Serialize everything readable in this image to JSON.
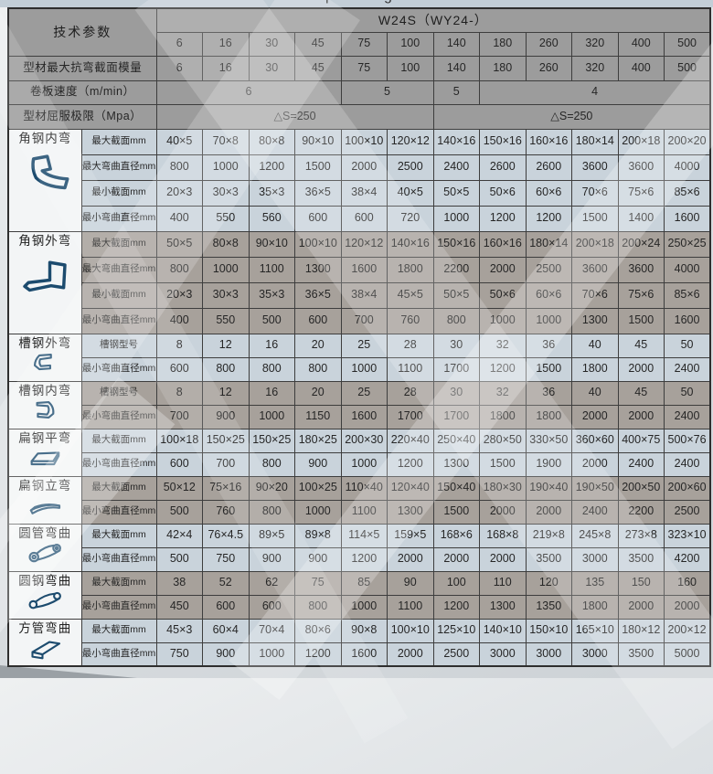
{
  "top_strip": {
    "fragments": [
      "p",
      "g"
    ]
  },
  "colors": {
    "icon_blue": "#1c4b6e",
    "header_gray": "#9c9c9c",
    "light_row": "#c9d3db",
    "dark_row": "#a7a19b",
    "border": "#3d3d3d"
  },
  "table": {
    "corner_label": "技术参数",
    "model_header": "W24S（WY24-）",
    "capacity_columns": [
      "6",
      "16",
      "30",
      "45",
      "75",
      "100",
      "140",
      "180",
      "260",
      "320",
      "400",
      "500"
    ],
    "param_rows": [
      {
        "label": "型材最大抗弯截面模量",
        "cells": [
          {
            "s": 1,
            "v": "6"
          },
          {
            "s": 1,
            "v": "16"
          },
          {
            "s": 1,
            "v": "30"
          },
          {
            "s": 1,
            "v": "45"
          },
          {
            "s": 1,
            "v": "75"
          },
          {
            "s": 1,
            "v": "100"
          },
          {
            "s": 1,
            "v": "140"
          },
          {
            "s": 1,
            "v": "180"
          },
          {
            "s": 1,
            "v": "260"
          },
          {
            "s": 1,
            "v": "320"
          },
          {
            "s": 1,
            "v": "400"
          },
          {
            "s": 1,
            "v": "500"
          }
        ]
      },
      {
        "label": "卷板速度（m/min）",
        "cells": [
          {
            "s": 4,
            "v": "6"
          },
          {
            "s": 2,
            "v": "5"
          },
          {
            "s": 1,
            "v": "5"
          },
          {
            "s": 5,
            "v": "4"
          }
        ]
      },
      {
        "label": "型材屈服极限（Mpa）",
        "cells": [
          {
            "s": 6,
            "v": "△S=250"
          },
          {
            "s": 6,
            "v": "△S=250"
          }
        ]
      }
    ],
    "sections": [
      {
        "title": "角钢内弯",
        "icon": "angle-inner-bend-icon",
        "rows": [
          {
            "label": "最大截面mm",
            "values": [
              "40×5",
              "70×8",
              "80×8",
              "90×10",
              "100×10",
              "120×12",
              "140×16",
              "150×16",
              "160×16",
              "180×14",
              "200×18",
              "200×20"
            ]
          },
          {
            "label": "最大弯曲直径mm",
            "values": [
              "800",
              "1000",
              "1200",
              "1500",
              "2000",
              "2500",
              "2400",
              "2600",
              "2600",
              "3600",
              "3600",
              "4000"
            ]
          },
          {
            "label": "最小截面mm",
            "values": [
              "20×3",
              "30×3",
              "35×3",
              "36×5",
              "38×4",
              "40×5",
              "50×5",
              "50×6",
              "60×6",
              "70×6",
              "75×6",
              "85×6"
            ]
          },
          {
            "label": "最小弯曲直径mm",
            "values": [
              "400",
              "550",
              "560",
              "600",
              "600",
              "720",
              "1000",
              "1200",
              "1200",
              "1500",
              "1400",
              "1600"
            ]
          }
        ]
      },
      {
        "title": "角钢外弯",
        "icon": "angle-outer-bend-icon",
        "rows": [
          {
            "label": "最大截面mm",
            "values": [
              "50×5",
              "80×8",
              "90×10",
              "100×10",
              "120×12",
              "140×16",
              "150×16",
              "160×16",
              "180×14",
              "200×18",
              "200×24",
              "250×25"
            ]
          },
          {
            "label": "最大弯曲直径mm",
            "values": [
              "800",
              "1000",
              "1100",
              "1300",
              "1600",
              "1800",
              "2200",
              "2000",
              "2500",
              "3600",
              "3600",
              "4000"
            ]
          },
          {
            "label": "最小截面mm",
            "values": [
              "20×3",
              "30×3",
              "35×3",
              "36×5",
              "38×4",
              "45×5",
              "50×5",
              "50×6",
              "60×6",
              "70×6",
              "75×6",
              "85×6"
            ]
          },
          {
            "label": "最小弯曲直径mm",
            "values": [
              "400",
              "550",
              "500",
              "600",
              "700",
              "760",
              "800",
              "1000",
              "1000",
              "1300",
              "1500",
              "1600"
            ]
          }
        ]
      },
      {
        "title": "槽钢外弯",
        "icon": "channel-outer-bend-icon",
        "rows": [
          {
            "label": "槽钢型号",
            "values": [
              "8",
              "12",
              "16",
              "20",
              "25",
              "28",
              "30",
              "32",
              "36",
              "40",
              "45",
              "50"
            ]
          },
          {
            "label": "最小弯曲直径mm",
            "values": [
              "600",
              "800",
              "800",
              "800",
              "1000",
              "1100",
              "1700",
              "1200",
              "1500",
              "1800",
              "2000",
              "2400"
            ]
          }
        ]
      },
      {
        "title": "槽钢内弯",
        "icon": "channel-inner-bend-icon",
        "rows": [
          {
            "label": "槽钢型号",
            "values": [
              "8",
              "12",
              "16",
              "20",
              "25",
              "28",
              "30",
              "32",
              "36",
              "40",
              "45",
              "50"
            ]
          },
          {
            "label": "最小弯曲直径mm",
            "values": [
              "700",
              "900",
              "1000",
              "1150",
              "1600",
              "1700",
              "1700",
              "1800",
              "1800",
              "2000",
              "2000",
              "2400"
            ]
          }
        ]
      },
      {
        "title": "扁钢平弯",
        "icon": "flat-steel-flat-bend-icon",
        "rows": [
          {
            "label": "最大截面mm",
            "values": [
              "100×18",
              "150×25",
              "150×25",
              "180×25",
              "200×30",
              "220×40",
              "250×40",
              "280×50",
              "330×50",
              "360×60",
              "400×75",
              "500×76"
            ]
          },
          {
            "label": "最小弯曲直径mm",
            "values": [
              "600",
              "700",
              "800",
              "900",
              "1000",
              "1200",
              "1300",
              "1500",
              "1900",
              "2000",
              "2400",
              "2400"
            ]
          }
        ]
      },
      {
        "title": "扁钢立弯",
        "icon": "flat-steel-edge-bend-icon",
        "rows": [
          {
            "label": "最大截面mm",
            "values": [
              "50×12",
              "75×16",
              "90×20",
              "100×25",
              "110×40",
              "120×40",
              "150×40",
              "180×30",
              "190×40",
              "190×50",
              "200×50",
              "200×60"
            ]
          },
          {
            "label": "最小弯曲直径mm",
            "values": [
              "500",
              "760",
              "800",
              "1000",
              "1100",
              "1300",
              "1500",
              "2000",
              "2000",
              "2400",
              "2200",
              "2500"
            ]
          }
        ]
      },
      {
        "title": "圆管弯曲",
        "icon": "round-tube-bend-icon",
        "rows": [
          {
            "label": "最大截面mm",
            "values": [
              "42×4",
              "76×4.5",
              "89×5",
              "89×8",
              "114×5",
              "159×5",
              "168×6",
              "168×8",
              "219×8",
              "245×8",
              "273×8",
              "323×10"
            ]
          },
          {
            "label": "最小弯曲直径mm",
            "values": [
              "500",
              "750",
              "900",
              "900",
              "1200",
              "2000",
              "2000",
              "2000",
              "3500",
              "3000",
              "3500",
              "4200"
            ]
          }
        ]
      },
      {
        "title": "圆钢弯曲",
        "icon": "round-bar-bend-icon",
        "rows": [
          {
            "label": "最大截面mm",
            "values": [
              "38",
              "52",
              "62",
              "75",
              "85",
              "90",
              "100",
              "110",
              "120",
              "135",
              "150",
              "160"
            ]
          },
          {
            "label": "最小弯曲直径mm",
            "values": [
              "450",
              "600",
              "600",
              "800",
              "1000",
              "1100",
              "1200",
              "1300",
              "1350",
              "1800",
              "2000",
              "2000"
            ]
          }
        ]
      },
      {
        "title": "方管弯曲",
        "icon": "square-tube-bend-icon",
        "rows": [
          {
            "label": "最大截面mm",
            "values": [
              "45×3",
              "60×4",
              "70×4",
              "80×6",
              "90×8",
              "100×10",
              "125×10",
              "140×10",
              "150×10",
              "165×10",
              "180×12",
              "200×12"
            ]
          },
          {
            "label": "最小弯曲直径mm",
            "values": [
              "750",
              "900",
              "1000",
              "1200",
              "1600",
              "2000",
              "2500",
              "3000",
              "3000",
              "3000",
              "3500",
              "5000"
            ]
          }
        ]
      }
    ]
  }
}
